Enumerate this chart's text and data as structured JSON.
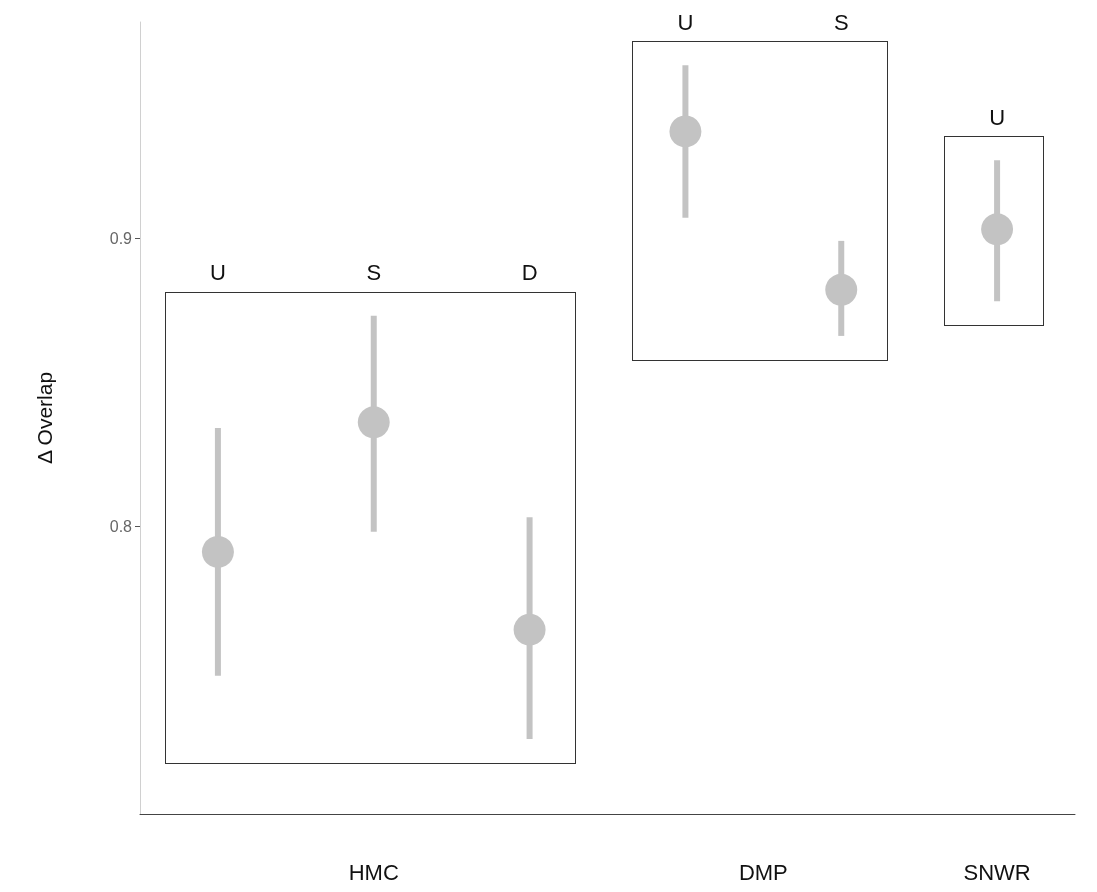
{
  "chart_data": {
    "type": "scatter",
    "ylabel": "Δ Overlap",
    "marker": "circle",
    "categories": [
      "U",
      "S",
      "D",
      "U",
      "S",
      "U"
    ],
    "series": [
      {
        "color": "#c3c3c3",
        "values": [
          0.791,
          0.836,
          0.764,
          null,
          null,
          null
        ],
        "errors": [
          [
            0.748,
            0.834
          ],
          [
            0.798,
            0.873
          ],
          [
            0.726,
            0.803
          ],
          null,
          null,
          null
        ]
      },
      {
        "color": "#c3c3c3",
        "values": [
          null,
          null,
          null,
          0.937,
          0.882,
          null
        ],
        "errors": [
          null,
          null,
          null,
          [
            0.907,
            0.96
          ],
          [
            0.866,
            0.899
          ],
          null
        ]
      },
      {
        "color": "#c3c3c3",
        "values": [
          null,
          null,
          null,
          null,
          null,
          0.903
        ],
        "errors": [
          null,
          null,
          null,
          null,
          null,
          [
            0.878,
            0.927
          ]
        ]
      }
    ],
    "annotations": [
      "HMC",
      "DMP",
      "SNWR"
    ],
    "ylim": [
      0.7,
      0.975
    ],
    "yticks": [
      0.8,
      0.9
    ]
  }
}
